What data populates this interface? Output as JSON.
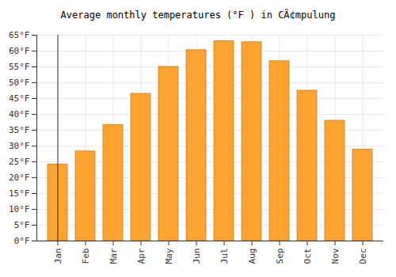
{
  "chart_data": {
    "type": "bar",
    "title": "Average monthly temperatures (°F ) in CÃ¢mpulung",
    "categories": [
      "Jan",
      "Feb",
      "Mar",
      "Apr",
      "May",
      "Jun",
      "Jul",
      "Aug",
      "Sep",
      "Oct",
      "Nov",
      "Dec"
    ],
    "values": [
      24.2,
      28.3,
      36.7,
      46.5,
      55.0,
      60.3,
      63.1,
      62.8,
      56.8,
      47.5,
      38.0,
      28.9
    ],
    "color": "#fca332",
    "ylim": [
      0,
      65
    ],
    "yticks": [
      {
        "value": 0,
        "label": "0°F"
      },
      {
        "value": 5,
        "label": "5°F"
      },
      {
        "value": 10,
        "label": "10°F"
      },
      {
        "value": 15,
        "label": "15°F"
      },
      {
        "value": 20,
        "label": "20°F"
      },
      {
        "value": 25,
        "label": "25°F"
      },
      {
        "value": 30,
        "label": "30°F"
      },
      {
        "value": 35,
        "label": "35°F"
      },
      {
        "value": 40,
        "label": "40°F"
      },
      {
        "value": 45,
        "label": "45°F"
      },
      {
        "value": 50,
        "label": "50°F"
      },
      {
        "value": 55,
        "label": "55°F"
      },
      {
        "value": 60,
        "label": "60°F"
      },
      {
        "value": 65,
        "label": "65°F"
      }
    ],
    "grid": true
  }
}
